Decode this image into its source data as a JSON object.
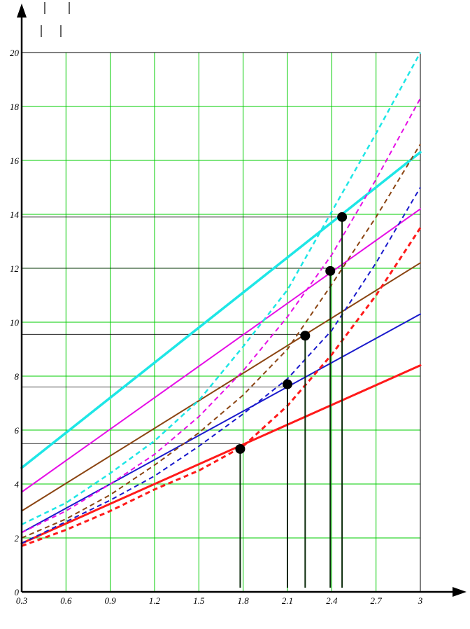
{
  "chart_data": {
    "type": "line",
    "title": "",
    "xlabel": "",
    "ylabel": "",
    "xlim": [
      0.3,
      3
    ],
    "ylim": [
      0,
      20
    ],
    "grid": true,
    "grid_color": "#00cc00",
    "x_ticks": [
      "0.3",
      "0.6",
      "0.9",
      "1.2",
      "1.5",
      "1.8",
      "2.1",
      "2.4",
      "2.7",
      "3"
    ],
    "y_ticks": [
      "0",
      "2",
      "4",
      "6",
      "8",
      "10",
      "12",
      "14",
      "16",
      "18",
      "20"
    ],
    "series": [
      {
        "style": "solid",
        "color": "#ff1a1a",
        "width": 3,
        "x": [
          0.3,
          3
        ],
        "y": [
          1.8,
          8.4
        ]
      },
      {
        "style": "solid",
        "color": "#1a1acc",
        "width": 2,
        "x": [
          0.3,
          3
        ],
        "y": [
          2.2,
          10.3
        ]
      },
      {
        "style": "solid",
        "color": "#8b4513",
        "width": 2,
        "x": [
          0.3,
          3
        ],
        "y": [
          3.0,
          12.2
        ]
      },
      {
        "style": "solid",
        "color": "#e60ee6",
        "width": 2,
        "x": [
          0.3,
          3
        ],
        "y": [
          3.7,
          14.2
        ]
      },
      {
        "style": "solid",
        "color": "#1ee6e6",
        "width": 3.5,
        "x": [
          0.3,
          3
        ],
        "y": [
          4.6,
          16.3
        ]
      },
      {
        "style": "dashed",
        "color": "#ff1a1a",
        "width": 3,
        "x": [
          0.3,
          0.6,
          0.9,
          1.2,
          1.5,
          1.8,
          2.1,
          2.4,
          2.7,
          3.0
        ],
        "y": [
          1.7,
          2.3,
          3.0,
          3.8,
          4.5,
          5.4,
          6.9,
          8.8,
          11.0,
          13.5
        ]
      },
      {
        "style": "dashed",
        "color": "#1a1acc",
        "width": 2,
        "x": [
          0.3,
          0.6,
          0.9,
          1.2,
          1.5,
          1.8,
          2.1,
          2.4,
          2.7,
          3.0
        ],
        "y": [
          1.8,
          2.6,
          3.4,
          4.3,
          5.4,
          6.6,
          7.9,
          9.7,
          12.2,
          15.0
        ]
      },
      {
        "style": "dashed",
        "color": "#8b4513",
        "width": 2,
        "x": [
          0.3,
          0.6,
          0.9,
          1.2,
          1.5,
          1.8,
          2.1,
          2.4,
          2.7,
          3.0
        ],
        "y": [
          2.0,
          2.7,
          3.6,
          4.7,
          5.9,
          7.3,
          9.0,
          11.4,
          13.9,
          16.6
        ]
      },
      {
        "style": "dashed",
        "color": "#e60ee6",
        "width": 2,
        "x": [
          0.3,
          0.6,
          0.9,
          1.2,
          1.5,
          1.8,
          2.1,
          2.4,
          2.7,
          3.0
        ],
        "y": [
          2.2,
          3.0,
          4.0,
          5.1,
          6.5,
          8.2,
          10.2,
          12.5,
          15.3,
          18.3
        ]
      },
      {
        "style": "dashed",
        "color": "#1ee6e6",
        "width": 2.5,
        "x": [
          0.3,
          0.6,
          0.9,
          1.2,
          1.5,
          1.8,
          2.1,
          2.4,
          2.7,
          3.0
        ],
        "y": [
          2.5,
          3.3,
          4.4,
          5.6,
          7.1,
          9.1,
          11.2,
          14.1,
          17.0,
          20.0
        ]
      }
    ],
    "intersections": [
      {
        "x": 1.78,
        "y": 5.3
      },
      {
        "x": 2.1,
        "y": 7.7
      },
      {
        "x": 2.22,
        "y": 9.5
      },
      {
        "x": 2.39,
        "y": 11.9
      },
      {
        "x": 2.47,
        "y": 13.9
      }
    ],
    "horizontal_guides": [
      {
        "y": 5.5,
        "x_end": 1.78
      },
      {
        "y": 7.6,
        "x_end": 2.1
      },
      {
        "y": 9.55,
        "x_end": 2.22
      },
      {
        "y": 12.0,
        "x_end": 2.39
      },
      {
        "y": 13.9,
        "x_end": 2.47
      }
    ],
    "vertical_drops": [
      1.78,
      2.1,
      2.22,
      2.39,
      2.47
    ]
  }
}
